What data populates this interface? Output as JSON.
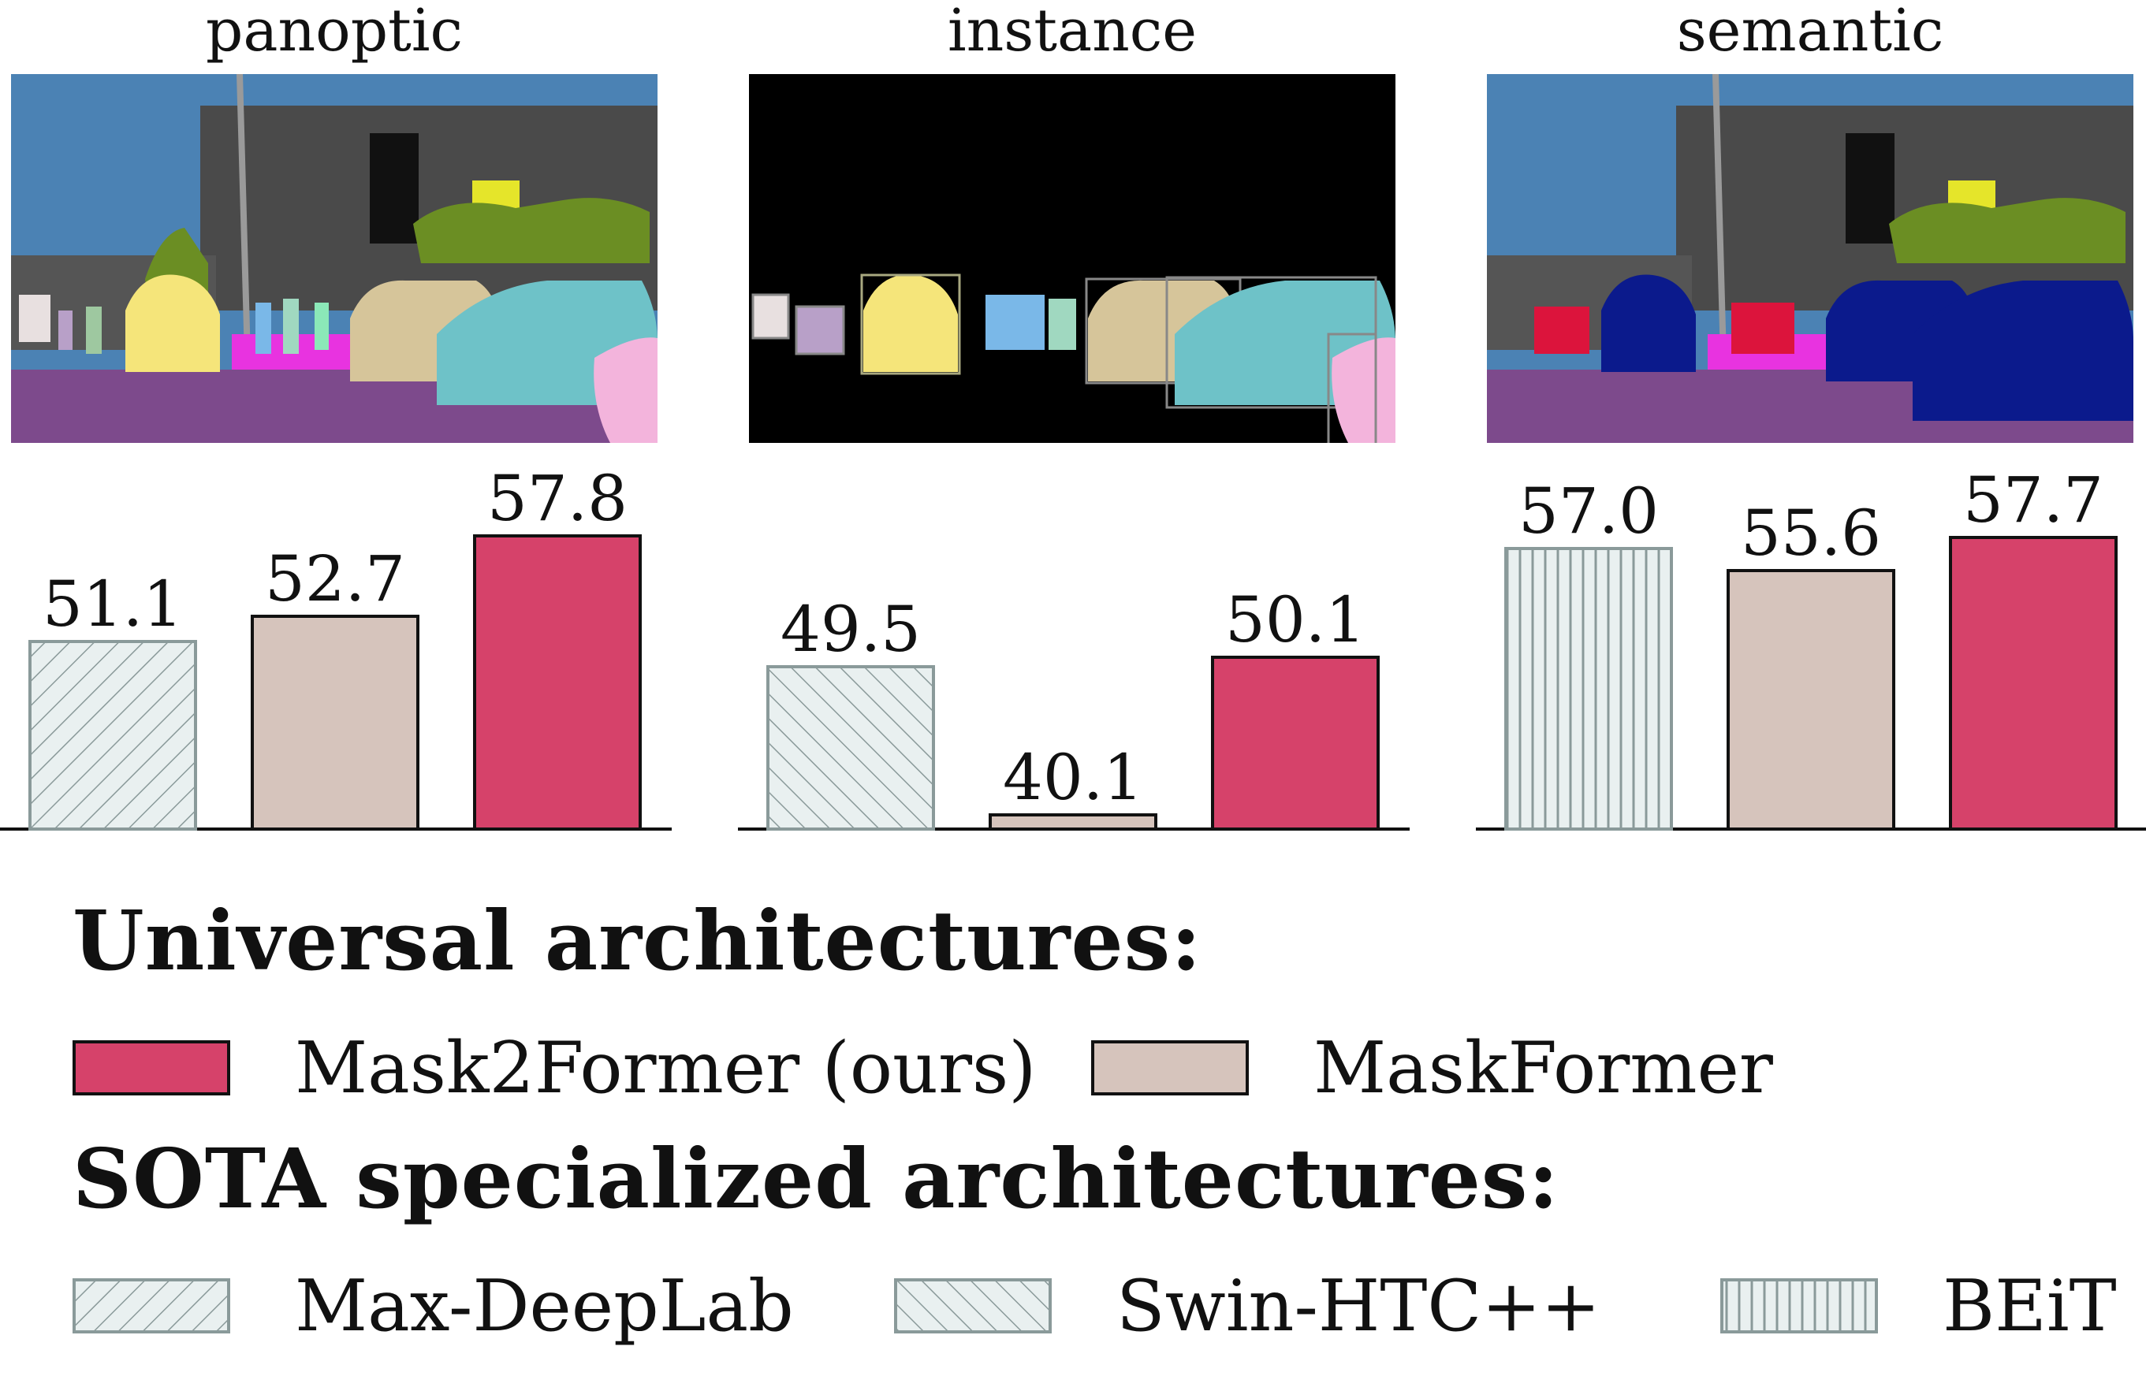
{
  "chart_data": {
    "type": "bar",
    "panels": [
      {
        "title": "panoptic",
        "bars": [
          {
            "method": "Max-DeepLab",
            "value": 51.1
          },
          {
            "method": "MaskFormer",
            "value": 52.7
          },
          {
            "method": "Mask2Former (ours)",
            "value": 57.8
          }
        ]
      },
      {
        "title": "instance",
        "bars": [
          {
            "method": "Swin-HTC++",
            "value": 49.5
          },
          {
            "method": "MaskFormer",
            "value": 40.1
          },
          {
            "method": "Mask2Former (ours)",
            "value": 50.1
          }
        ]
      },
      {
        "title": "semantic",
        "bars": [
          {
            "method": "BEiT",
            "value": 57.0
          },
          {
            "method": "MaskFormer",
            "value": 55.6
          },
          {
            "method": "Mask2Former (ours)",
            "value": 57.7
          }
        ]
      }
    ],
    "colors": {
      "Mask2Former (ours)": "#d6426a",
      "MaskFormer": "#d6c4bc",
      "specialized_fill": "#e9f0f0",
      "specialized_stroke": "#8a9a9a"
    },
    "legend": {
      "universal_heading": "Universal architectures:",
      "universal_items": [
        "Mask2Former (ours)",
        "MaskFormer"
      ],
      "sota_heading": "SOTA specialized architectures:",
      "sota_items": [
        "Max-DeepLab",
        "Swin-HTC++",
        "BEiT"
      ]
    }
  }
}
